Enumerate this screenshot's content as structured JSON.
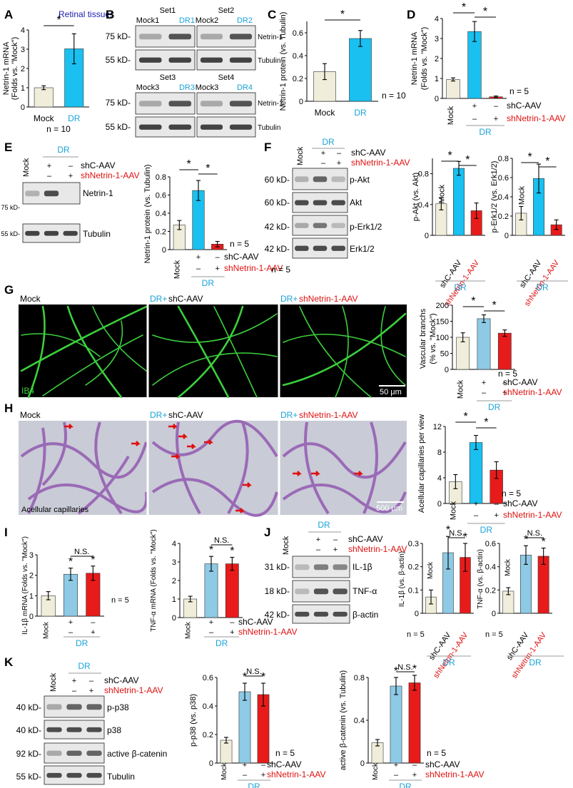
{
  "panels": [
    "A",
    "B",
    "C",
    "D",
    "E",
    "F",
    "G",
    "H",
    "I",
    "J",
    "K"
  ],
  "colors": {
    "mock": "#f0edda",
    "drA": "#19c0f0",
    "dr": "#8ecae6",
    "sh": "#e81b1b",
    "cyan_text": "#19a3d9",
    "red_text": "#e01010",
    "navy": "#1a1ab0",
    "ib4_green": "#3ccf3c"
  },
  "labels": {
    "retinal_tissues": "Retinal tissues",
    "netrin1_mrna": "Netrin-1 mRNA",
    "folds_mock": "(Folds vs. \"Mock\")",
    "netrin1_protein_tubulin": "Netrin-1 protein (vs. Tubulin)",
    "mock": "Mock",
    "dr": "DR",
    "shC": "shC-AAV",
    "shN": "shNetrin-1-AAV",
    "plus": "+",
    "minus": "–",
    "star": "*",
    "ns": "N.S.",
    "n10": "n = 10",
    "n5": "n = 5",
    "dr_plus": "DR+",
    "set1": "Set1",
    "set2": "Set2",
    "set3": "Set3",
    "set4": "Set4",
    "mock1": "Mock1",
    "mock2": "Mock2",
    "mock3": "Mock3",
    "dr1": "DR1",
    "dr2": "DR2",
    "dr3": "DR3",
    "dr4": "DR4",
    "kd75": "75 kD-",
    "kd55": "55 kD-",
    "kd60": "60 kD-",
    "kd42": "42 kD-",
    "kd31": "31 kD-",
    "kd18": "18 kD-",
    "kd40": "40 kD-",
    "kd92": "92 kD-",
    "netrin1": "Netrin-1",
    "tubulin": "Tubulin",
    "pakt": "p-Akt",
    "akt": "Akt",
    "perk": "p-Erk1/2",
    "erk": "Erk1/2",
    "il1b": "IL-1β",
    "tnfa": "TNF-α",
    "bactin": "β-actin",
    "pp38": "p-p38",
    "p38": "p38",
    "abcat": "active β-catenin",
    "pakt_ylabel": "p-Akt (vs. Akt)",
    "perk_ylabel": "p-Erk1/2 (vs. Erk1/2)",
    "vasc_ylabel": "Vascular branchs",
    "vasc_ylabel2": "(% vs. \"Mock\")",
    "acell_ylabel": "Acellular capillaries per view",
    "il1b_mrna": "IL-1β mRNA (Folds vs. \"Mock\")",
    "tnfa_mrna": "TNF-α  mRNA (Folds vs. \"Mock\")",
    "il1b_actin": "IL-1β (vs. β-actin)",
    "tnfa_actin": "TNF-α (vs. β-actin)",
    "pp38_ylabel": "p-p38 (vs. p38)",
    "abcat_ylabel": "active β-catenin (vs. Tubulin)",
    "ib4": "IB4",
    "scale50": "50 μm",
    "scale500": "500 μm",
    "acellular": "Acellular capillaries"
  },
  "chart_data": [
    {
      "panel": "A",
      "type": "bar",
      "categories": [
        "Mock",
        "DR"
      ],
      "values": [
        1.0,
        3.02
      ],
      "errors": [
        0.1,
        0.78
      ],
      "ylim": [
        0,
        4
      ],
      "ticks": [
        0,
        1,
        2,
        3,
        4
      ],
      "title": "Retinal tissues",
      "ylabel": "Netrin-1 mRNA (Folds vs. \"Mock\")"
    },
    {
      "panel": "C",
      "type": "bar",
      "categories": [
        "Mock",
        "DR"
      ],
      "values": [
        0.26,
        0.55
      ],
      "errors": [
        0.07,
        0.07
      ],
      "ylim": [
        0,
        0.7
      ],
      "ticks": [
        0,
        0.2,
        0.4,
        0.6
      ],
      "ylabel": "Netrin-1 protein (vs. Tubulin)"
    },
    {
      "panel": "D",
      "type": "bar",
      "categories": [
        "Mock",
        "shC-AAV",
        "shNetrin-1-AAV"
      ],
      "values": [
        0.95,
        3.35,
        0.08
      ],
      "errors": [
        0.08,
        0.5,
        0.04
      ],
      "ylim": [
        0,
        4
      ],
      "ticks": [
        0,
        1,
        2,
        3,
        4
      ],
      "ylabel": "Netrin-1 mRNA (Folds vs. \"Mock\")"
    },
    {
      "panel": "E",
      "type": "bar",
      "categories": [
        "Mock",
        "shC-AAV",
        "shNetrin-1-AAV"
      ],
      "values": [
        0.27,
        0.65,
        0.06
      ],
      "errors": [
        0.05,
        0.11,
        0.03
      ],
      "ylim": [
        0,
        0.8
      ],
      "ticks": [
        0,
        0.2,
        0.4,
        0.6,
        0.8
      ],
      "ylabel": "Netrin-1 protein (vs. Tubulin)"
    },
    {
      "panel": "F1",
      "type": "bar",
      "categories": [
        "Mock",
        "shC-AAV",
        "shNetrin-1-AAV"
      ],
      "values": [
        0.41,
        0.87,
        0.32
      ],
      "errors": [
        0.08,
        0.09,
        0.1
      ],
      "ylim": [
        0,
        1.0
      ],
      "ticks": [
        0,
        0.4,
        0.8
      ],
      "ylabel": "p-Akt (vs. Akt)"
    },
    {
      "panel": "F2",
      "type": "bar",
      "categories": [
        "Mock",
        "shC-AAV",
        "shNetrin-1-AAV"
      ],
      "values": [
        0.23,
        0.59,
        0.11
      ],
      "errors": [
        0.07,
        0.15,
        0.05
      ],
      "ylim": [
        0,
        0.8
      ],
      "ticks": [
        0,
        0.2,
        0.4,
        0.6,
        0.8
      ],
      "ylabel": "p-Erk1/2 (vs. Erk1/2)"
    },
    {
      "panel": "G",
      "type": "bar",
      "categories": [
        "Mock",
        "shC-AAV",
        "shNetrin-1-AAV"
      ],
      "values": [
        100,
        158,
        113
      ],
      "errors": [
        14,
        12,
        10
      ],
      "ylim": [
        0,
        200
      ],
      "ticks": [
        0,
        50,
        100,
        150,
        200
      ],
      "ylabel": "Vascular branchs (% vs. \"Mock\")"
    },
    {
      "panel": "H",
      "type": "bar",
      "categories": [
        "Mock",
        "shC-AAV",
        "shNetrin-1-AAV"
      ],
      "values": [
        3.4,
        9.5,
        5.2
      ],
      "errors": [
        1.1,
        1.1,
        1.3
      ],
      "ylim": [
        0,
        12
      ],
      "ticks": [
        0,
        4,
        8,
        12
      ],
      "ylabel": "Acellular capillaries per view"
    },
    {
      "panel": "I1",
      "type": "bar",
      "categories": [
        "Mock",
        "shC-AAV",
        "shNetrin-1-AAV"
      ],
      "values": [
        1.0,
        2.05,
        2.1
      ],
      "errors": [
        0.2,
        0.3,
        0.35
      ],
      "ylim": [
        0,
        3
      ],
      "ticks": [
        0,
        1,
        2,
        3
      ],
      "ylabel": "IL-1β mRNA (Folds vs. \"Mock\")"
    },
    {
      "panel": "I2",
      "type": "bar",
      "categories": [
        "Mock",
        "shC-AAV",
        "shNetrin-1-AAV"
      ],
      "values": [
        1.0,
        2.9,
        2.9
      ],
      "errors": [
        0.15,
        0.4,
        0.35
      ],
      "ylim": [
        0,
        4
      ],
      "ticks": [
        0,
        1,
        2,
        3,
        4
      ],
      "ylabel": "TNF-α  mRNA (Folds vs. \"Mock\")"
    },
    {
      "panel": "J1",
      "type": "bar",
      "categories": [
        "Mock",
        "shC-AAV",
        "shNetrin-1-AAV"
      ],
      "values": [
        0.07,
        0.26,
        0.24
      ],
      "errors": [
        0.03,
        0.07,
        0.06
      ],
      "ylim": [
        0,
        0.3
      ],
      "ticks": [
        0,
        0.1,
        0.2,
        0.3
      ],
      "ylabel": "IL-1β (vs. β-actin)"
    },
    {
      "panel": "J2",
      "type": "bar",
      "categories": [
        "Mock",
        "shC-AAV",
        "shNetrin-1-AAV"
      ],
      "values": [
        0.19,
        0.5,
        0.49
      ],
      "errors": [
        0.03,
        0.08,
        0.07
      ],
      "ylim": [
        0,
        0.6
      ],
      "ticks": [
        0,
        0.2,
        0.4,
        0.6
      ],
      "ylabel": "TNF-α (vs. β-actin)"
    },
    {
      "panel": "K1",
      "type": "bar",
      "categories": [
        "Mock",
        "shC-AAV",
        "shNetrin-1-AAV"
      ],
      "values": [
        0.16,
        0.5,
        0.48
      ],
      "errors": [
        0.02,
        0.06,
        0.08
      ],
      "ylim": [
        0,
        0.6
      ],
      "ticks": [
        0,
        0.2,
        0.4,
        0.6
      ],
      "ylabel": "p-p38 (vs. p38)"
    },
    {
      "panel": "K2",
      "type": "bar",
      "categories": [
        "Mock",
        "shC-AAV",
        "shNetrin-1-AAV"
      ],
      "values": [
        0.19,
        0.72,
        0.75
      ],
      "errors": [
        0.03,
        0.08,
        0.07
      ],
      "ylim": [
        0,
        0.8
      ],
      "ticks": [
        0,
        0.4,
        0.8
      ],
      "ylabel": "active β-catenin (vs. Tubulin)"
    }
  ]
}
